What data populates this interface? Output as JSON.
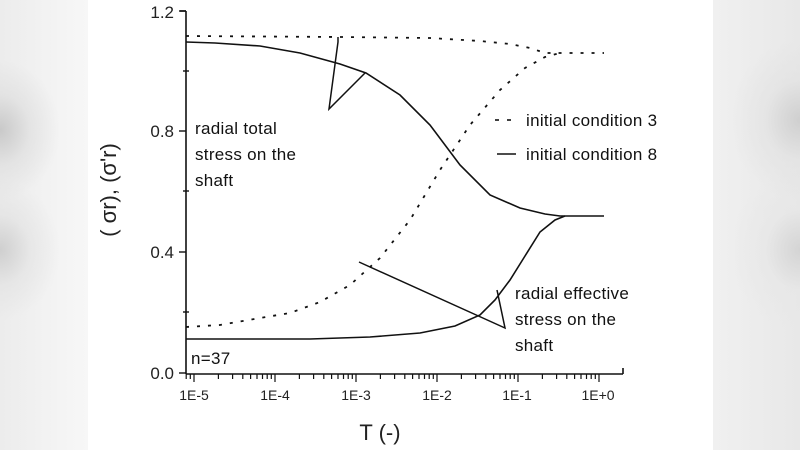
{
  "chart_data": {
    "type": "line",
    "title": "",
    "xlabel": "T (-)",
    "ylabel": "( σr), (σ'r)",
    "xscale": "log",
    "xlim": [
      8e-06,
      1.3
    ],
    "ylim": [
      0.0,
      1.2
    ],
    "x_ticks": [
      "1E-5",
      "1E-4",
      "1E-3",
      "1E-2",
      "1E-1",
      "1E+0"
    ],
    "y_ticks": [
      "0.0",
      "0.4",
      "0.8",
      "1.2"
    ],
    "grid": false,
    "legend": {
      "position": "right-upper",
      "entries": [
        {
          "label": "initial condition 3",
          "style": "dotted"
        },
        {
          "label": "initial condition 8",
          "style": "solid"
        }
      ]
    },
    "annotations": [
      {
        "text": [
          "radial total",
          "stress on the",
          "shaft"
        ]
      },
      {
        "text": [
          "radial effective",
          "stress on the",
          "shaft"
        ]
      },
      {
        "text": [
          "n=37"
        ]
      }
    ],
    "series": [
      {
        "name": "initial condition 8 - radial total stress",
        "style": "solid",
        "x": [
          8e-06,
          1e-05,
          3.6e-05,
          0.0001,
          0.00031,
          0.00065,
          0.0017,
          0.0043,
          0.012,
          0.028,
          0.062,
          0.13,
          0.2,
          1.2
        ],
        "y": [
          1.1,
          1.1,
          1.09,
          1.06,
          1.03,
          1.0,
          0.92,
          0.82,
          0.69,
          0.59,
          0.55,
          0.53,
          0.52,
          0.52
        ]
      },
      {
        "name": "initial condition 8 - radial effective stress",
        "style": "solid",
        "x": [
          8e-06,
          6.1e-05,
          0.00033,
          0.0018,
          0.0077,
          0.021,
          0.043,
          0.065,
          0.1,
          0.15,
          0.23,
          0.35,
          0.47
        ],
        "y": [
          0.11,
          0.11,
          0.11,
          0.12,
          0.13,
          0.15,
          0.19,
          0.24,
          0.31,
          0.39,
          0.47,
          0.51,
          0.52
        ]
      },
      {
        "name": "initial condition 3 - radial total stress",
        "style": "dotted",
        "x": [
          8e-06,
          0.00065,
          0.012,
          0.043,
          0.1,
          0.18,
          0.28,
          0.47,
          1.2
        ],
        "y": [
          1.12,
          1.12,
          1.11,
          1.1,
          1.09,
          1.08,
          1.06,
          1.06,
          1.06
        ]
      },
      {
        "name": "initial condition 3 - radial effective stress",
        "style": "dotted",
        "x": [
          8e-06,
          2.6e-05,
          8.3e-05,
          0.00019,
          0.00044,
          0.001,
          0.0023,
          0.0053,
          0.012,
          0.028,
          0.065,
          0.13,
          0.23,
          0.35
        ],
        "y": [
          0.15,
          0.16,
          0.18,
          0.2,
          0.24,
          0.29,
          0.38,
          0.51,
          0.67,
          0.82,
          0.94,
          1.01,
          1.05,
          1.06
        ]
      }
    ]
  },
  "labels": {
    "ylabel": "( σr), (σ'r)",
    "xlabel": "T (-)",
    "y_ticks": [
      "0.0",
      "0.4",
      "0.8",
      "1.2"
    ],
    "x_ticks": [
      "1E-5",
      "1E-4",
      "1E-3",
      "1E-2",
      "1E-1",
      "1E+0"
    ],
    "annot_total": [
      "radial total",
      "stress on the",
      "shaft"
    ],
    "annot_effective": [
      "radial effective",
      "stress on the",
      "shaft"
    ],
    "sample_count": "n=37",
    "legend": [
      "initial condition 3",
      "initial condition 8"
    ],
    "legend_markers": [
      "- -",
      "—"
    ]
  }
}
